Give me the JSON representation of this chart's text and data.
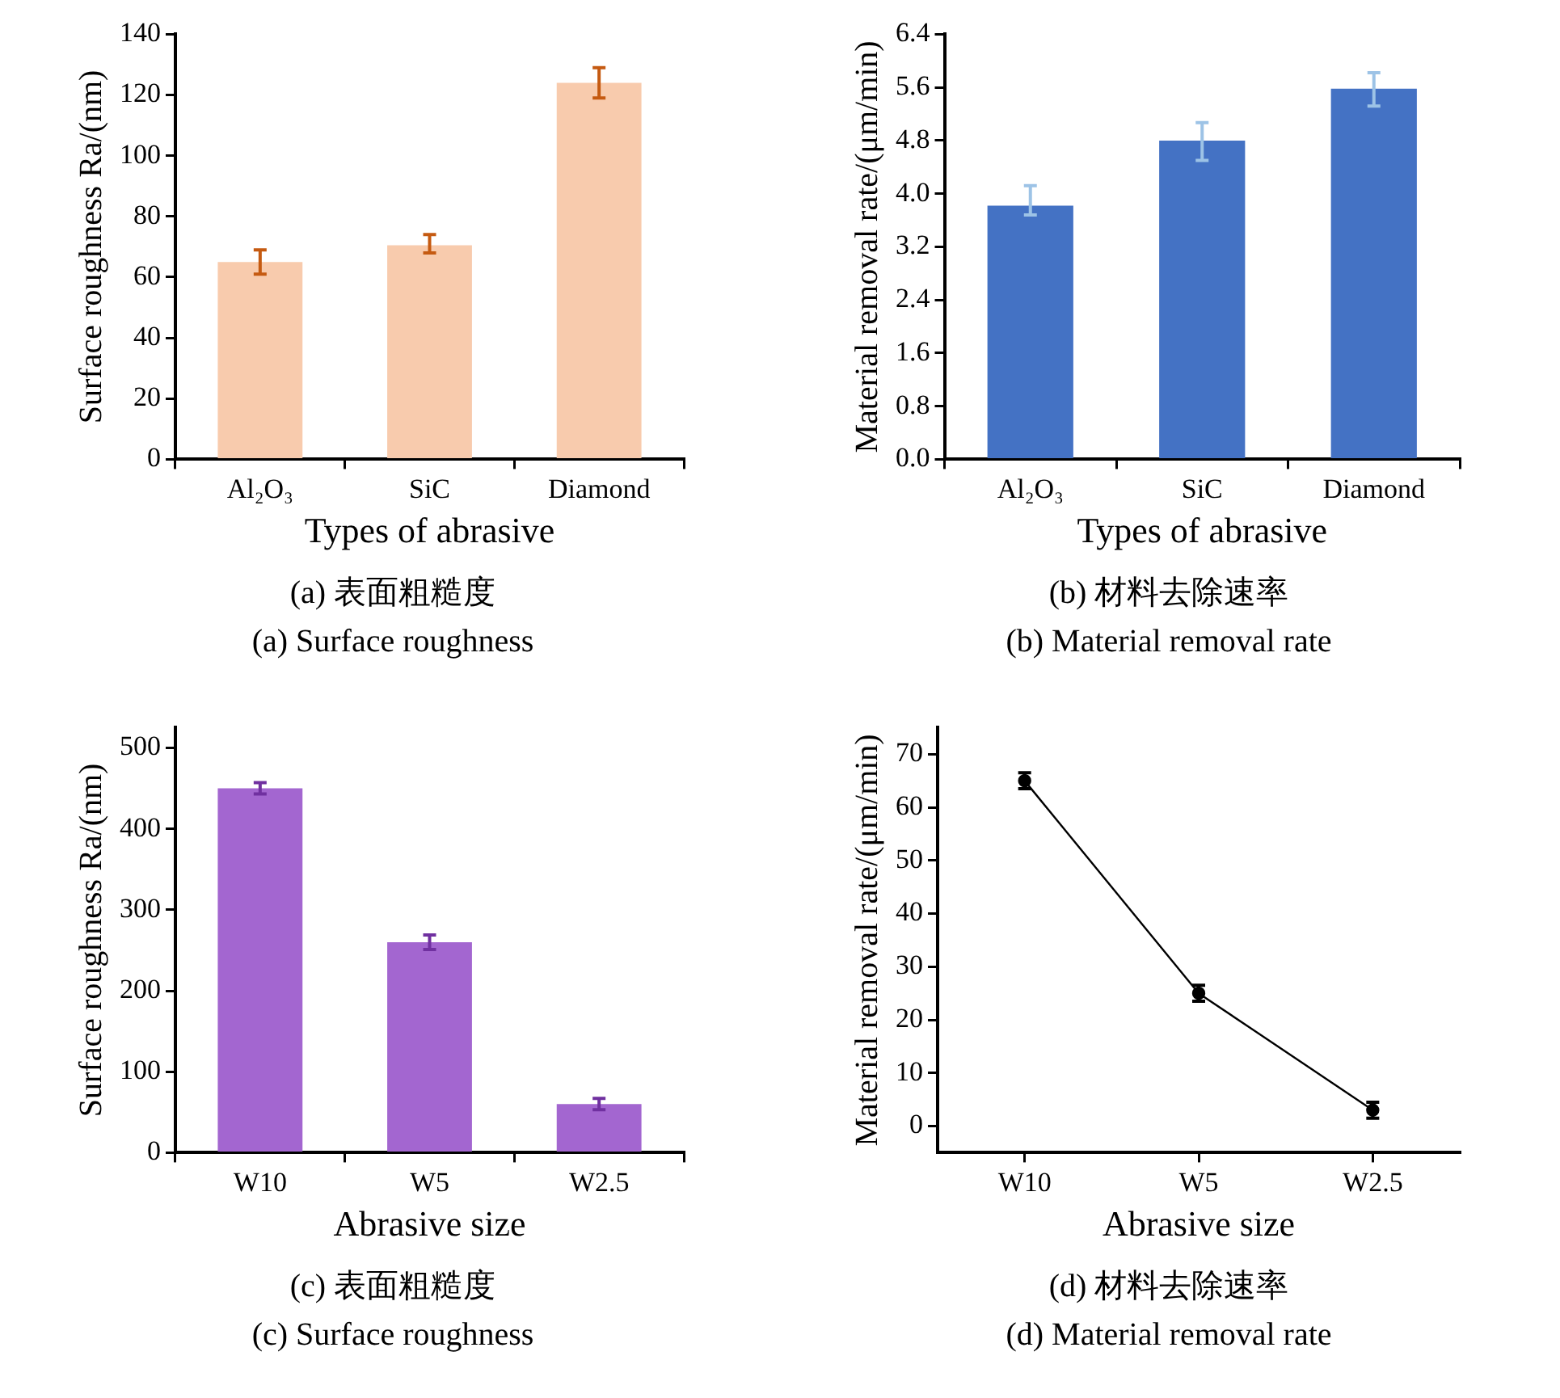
{
  "chart_data": [
    {
      "type": "bar",
      "categories": [
        "Al₂O₃",
        "SiC",
        "Diamond"
      ],
      "xlabel": "Types of abrasive",
      "ylabel": "Surface roughness Ra/(nm)",
      "series": [
        {
          "color": "#f8cbad",
          "values": [
            65,
            70.5,
            124
          ],
          "errors": [
            [
              61,
              69
            ],
            [
              68,
              74
            ],
            [
              119,
              129
            ]
          ]
        }
      ],
      "ylim": [
        0,
        140
      ],
      "yticks": [
        0,
        20,
        40,
        60,
        80,
        100,
        120,
        140
      ],
      "annotations": [
        "(a)  表面粗糙度",
        "(a) Surface roughness"
      ]
    },
    {
      "type": "bar",
      "categories": [
        "Al₂O₃",
        "SiC",
        "Diamond"
      ],
      "xlabel": "Types of abrasive",
      "ylabel": "Material removal rate/(μm/min)",
      "series": [
        {
          "color": "#4472c4",
          "values": [
            3.82,
            4.8,
            5.58
          ],
          "errors": [
            [
              3.68,
              4.12
            ],
            [
              4.5,
              5.07
            ],
            [
              5.32,
              5.82
            ]
          ]
        }
      ],
      "ylim": [
        0,
        6.4
      ],
      "yticks": [
        {
          "value": 0,
          "label": "0.0"
        },
        0.8,
        1.6,
        2.4,
        3.2,
        {
          "value": 4,
          "label": "4.0"
        },
        4.8,
        5.6,
        6.4
      ],
      "annotations": [
        "(b)  材料去除速率",
        "(b) Material removal rate"
      ]
    },
    {
      "type": "bar",
      "categories": [
        "W10",
        "W5",
        "W2.5"
      ],
      "xlabel": "Abrasive size",
      "ylabel": "Surface roughness Ra/(nm)",
      "series": [
        {
          "color": "#a366d0",
          "values": [
            450,
            260,
            60
          ],
          "errors": [
            7,
            9,
            7
          ]
        }
      ],
      "ylim": [
        0,
        525
      ],
      "yticks": [
        0,
        100,
        200,
        300,
        400,
        500
      ],
      "annotations": [
        "(c)  表面粗糙度",
        "(c) Surface roughness"
      ]
    },
    {
      "type": "line",
      "categories": [
        "W10",
        "W5",
        "W2.5"
      ],
      "xlabel": "Abrasive size",
      "ylabel": "Material removal rate/(μm/min)",
      "series": [
        {
          "color": "#000000",
          "values": [
            65,
            25,
            3
          ],
          "errors": [
            1.5,
            1.5,
            1.5
          ]
        }
      ],
      "marker": "circle",
      "ylim": [
        -5,
        75
      ],
      "yticks": [
        0,
        10,
        20,
        30,
        40,
        50,
        60,
        70
      ],
      "annotations": [
        "(d)  材料去除速率",
        "(d) Material removal rate"
      ]
    }
  ]
}
